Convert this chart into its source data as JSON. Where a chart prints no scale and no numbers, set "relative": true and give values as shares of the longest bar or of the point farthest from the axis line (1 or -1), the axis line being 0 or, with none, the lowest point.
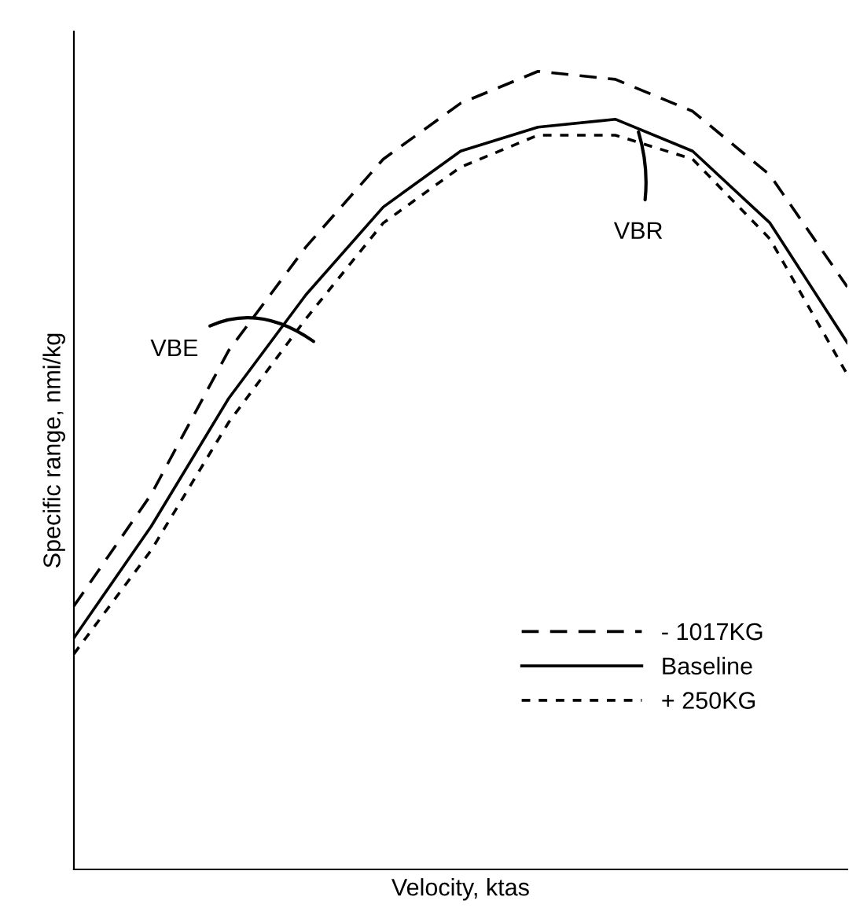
{
  "chart_data": {
    "type": "line",
    "relative": true,
    "xlabel": "Velocity, ktas",
    "ylabel": "Specific range, nmi/kg",
    "tick_labels": false,
    "legend": "bottom right",
    "marker": "none",
    "categories": [
      null,
      null,
      null,
      null,
      null,
      null,
      null,
      null,
      null,
      null,
      null
    ],
    "series": [
      {
        "name": "- 1017KG",
        "color": "#000000",
        "line_style": "dashed",
        "values": [
          0.33,
          0.47,
          0.65,
          0.78,
          0.89,
          0.96,
          1.0,
          0.99,
          0.95,
          0.87,
          0.73
        ]
      },
      {
        "name": "Baseline",
        "color": "#000000",
        "line_style": "solid",
        "values": [
          0.29,
          0.43,
          0.59,
          0.72,
          0.83,
          0.9,
          0.93,
          0.94,
          0.9,
          0.81,
          0.66
        ]
      },
      {
        "name": "+ 250KG",
        "color": "#000000",
        "line_style": "dotted",
        "values": [
          0.27,
          0.4,
          0.56,
          0.69,
          0.81,
          0.88,
          0.92,
          0.92,
          0.89,
          0.79,
          0.62
        ]
      }
    ],
    "annotations": [
      "VBE",
      "VBR"
    ]
  }
}
